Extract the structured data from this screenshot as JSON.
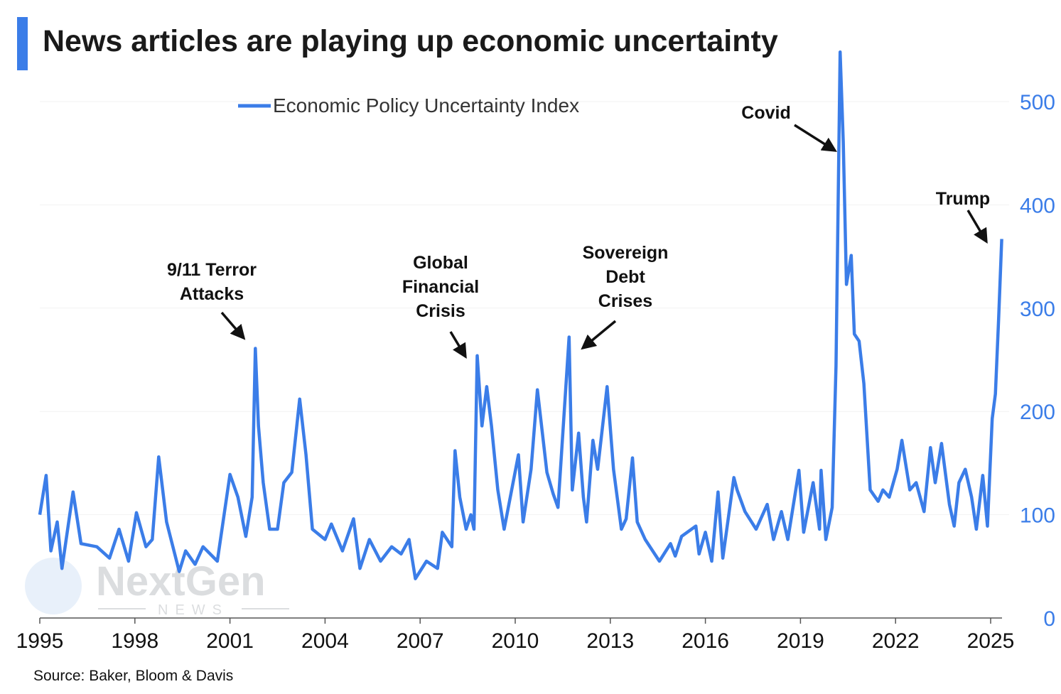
{
  "title": "News articles are playing up economic uncertainty",
  "source": "Source: Baker, Bloom & Davis",
  "watermark": {
    "brand": "NextGen",
    "sub": "NEWS"
  },
  "colors": {
    "accent": "#3b7de8",
    "line": "#3b7de8",
    "text": "#111111"
  },
  "chart_data": {
    "type": "line",
    "title": "News articles are playing up economic uncertainty",
    "xlabel": "",
    "ylabel": "",
    "xlim": [
      1995,
      2025.4
    ],
    "ylim": [
      0,
      550
    ],
    "y_axis_side": "right",
    "grid": true,
    "legend_placement": "top-left",
    "x_ticks": [
      "1995",
      "1998",
      "2001",
      "2004",
      "2007",
      "2010",
      "2013",
      "2016",
      "2019",
      "2022",
      "2025"
    ],
    "y_ticks": [
      "0",
      "100",
      "200",
      "300",
      "400",
      "500"
    ],
    "series": [
      {
        "name": "Economic Policy Uncertainty Index",
        "x": [
          1995.0,
          1995.2,
          1995.35,
          1995.55,
          1995.7,
          1996.05,
          1996.3,
          1996.8,
          1997.2,
          1997.5,
          1997.8,
          1998.05,
          1998.35,
          1998.55,
          1998.75,
          1999.0,
          1999.4,
          1999.6,
          1999.9,
          2000.15,
          2000.6,
          2001.0,
          2001.25,
          2001.5,
          2001.7,
          2001.8,
          2001.9,
          2002.05,
          2002.25,
          2002.5,
          2002.7,
          2002.95,
          2003.2,
          2003.4,
          2003.6,
          2004.0,
          2004.2,
          2004.55,
          2004.9,
          2005.1,
          2005.4,
          2005.75,
          2006.1,
          2006.4,
          2006.65,
          2006.85,
          2007.2,
          2007.55,
          2007.7,
          2008.0,
          2008.1,
          2008.25,
          2008.45,
          2008.6,
          2008.7,
          2008.8,
          2008.95,
          2009.1,
          2009.25,
          2009.45,
          2009.65,
          2009.8,
          2010.1,
          2010.25,
          2010.5,
          2010.7,
          2011.0,
          2011.2,
          2011.35,
          2011.7,
          2011.8,
          2012.0,
          2012.15,
          2012.25,
          2012.45,
          2012.6,
          2012.9,
          2013.1,
          2013.35,
          2013.5,
          2013.7,
          2013.85,
          2014.1,
          2014.55,
          2014.9,
          2015.05,
          2015.25,
          2015.7,
          2015.8,
          2016.0,
          2016.2,
          2016.4,
          2016.55,
          2016.9,
          2017.0,
          2017.25,
          2017.6,
          2017.95,
          2018.15,
          2018.4,
          2018.6,
          2018.95,
          2019.1,
          2019.4,
          2019.6,
          2019.65,
          2019.8,
          2020.0,
          2020.12,
          2020.25,
          2020.35,
          2020.45,
          2020.6,
          2020.7,
          2020.85,
          2021.0,
          2021.2,
          2021.45,
          2021.6,
          2021.8,
          2022.05,
          2022.2,
          2022.45,
          2022.65,
          2022.9,
          2023.1,
          2023.25,
          2023.45,
          2023.7,
          2023.85,
          2024.0,
          2024.2,
          2024.4,
          2024.55,
          2024.75,
          2024.9,
          2025.05,
          2025.15,
          2025.25,
          2025.35
        ],
        "values": [
          100,
          138,
          65,
          93,
          48,
          122,
          72,
          69,
          58,
          86,
          55,
          102,
          69,
          76,
          156,
          93,
          45,
          65,
          52,
          69,
          55,
          139,
          117,
          79,
          117,
          261,
          186,
          131,
          86,
          86,
          131,
          141,
          212,
          158,
          86,
          76,
          91,
          65,
          96,
          48,
          76,
          55,
          69,
          62,
          76,
          38,
          55,
          48,
          83,
          69,
          162,
          117,
          86,
          100,
          86,
          254,
          186,
          224,
          186,
          124,
          86,
          110,
          158,
          93,
          144,
          221,
          141,
          120,
          107,
          272,
          124,
          179,
          117,
          93,
          172,
          144,
          224,
          144,
          86,
          96,
          155,
          93,
          76,
          55,
          72,
          60,
          79,
          89,
          62,
          83,
          55,
          122,
          58,
          136,
          124,
          103,
          86,
          110,
          76,
          103,
          76,
          143,
          83,
          131,
          86,
          143,
          76,
          107,
          244,
          548,
          461,
          323,
          351,
          275,
          268,
          227,
          124,
          113,
          124,
          117,
          144,
          172,
          124,
          131,
          103,
          165,
          131,
          169,
          110,
          89,
          131,
          144,
          117,
          86,
          138,
          89,
          193,
          217,
          289,
          367
        ]
      }
    ],
    "annotations": [
      {
        "label_lines": [
          "9/11 Terror",
          "Attacks"
        ],
        "x": 2001.8,
        "y": 261
      },
      {
        "label_lines": [
          "Global",
          "Financial",
          "Crisis"
        ],
        "x": 2008.8,
        "y": 254
      },
      {
        "label_lines": [
          "Sovereign",
          "Debt",
          "Crises"
        ],
        "x": 2011.7,
        "y": 272
      },
      {
        "label_lines": [
          "Covid"
        ],
        "x": 2020.25,
        "y": 450
      },
      {
        "label_lines": [
          "Trump"
        ],
        "x": 2025.35,
        "y": 367
      }
    ]
  }
}
